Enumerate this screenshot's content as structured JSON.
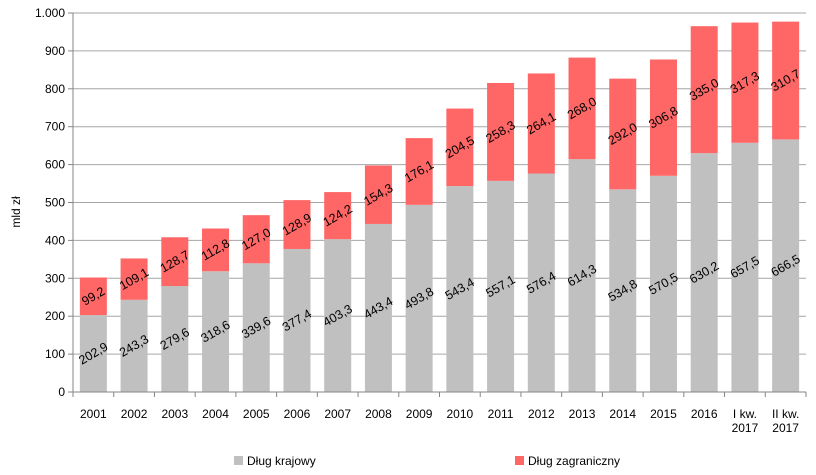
{
  "chart_data": {
    "type": "bar",
    "stacked": true,
    "title": "",
    "xlabel": "",
    "ylabel": "mld zł",
    "ylim": [
      0,
      1000
    ],
    "yticks": [
      0,
      100,
      200,
      300,
      400,
      500,
      600,
      700,
      800,
      900,
      1000
    ],
    "ytick_labels": [
      "0",
      "100",
      "200",
      "300",
      "400",
      "500",
      "600",
      "700",
      "800",
      "900",
      "1.000"
    ],
    "grid": true,
    "legend_position": "bottom",
    "categories": [
      [
        "2001"
      ],
      [
        "2002"
      ],
      [
        "2003"
      ],
      [
        "2004"
      ],
      [
        "2005"
      ],
      [
        "2006"
      ],
      [
        "2007"
      ],
      [
        "2008"
      ],
      [
        "2009"
      ],
      [
        "2010"
      ],
      [
        "2011"
      ],
      [
        "2012"
      ],
      [
        "2013"
      ],
      [
        "2014"
      ],
      [
        "2015"
      ],
      [
        "2016"
      ],
      [
        "I kw.",
        "2017"
      ],
      [
        "II kw.",
        "2017"
      ]
    ],
    "series": [
      {
        "name": "Dług krajowy",
        "color": "#c0c0c0",
        "values": [
          202.9,
          243.3,
          279.6,
          318.6,
          339.6,
          377.4,
          403.3,
          443.4,
          493.8,
          543.4,
          557.1,
          576.4,
          614.3,
          534.8,
          570.5,
          630.2,
          657.5,
          666.5
        ],
        "labels": [
          "202,9",
          "243,3",
          "279,6",
          "318,6",
          "339,6",
          "377,4",
          "403,3",
          "443,4",
          "493,8",
          "543,4",
          "557,1",
          "576,4",
          "614,3",
          "534,8",
          "570,5",
          "630,2",
          "657,5",
          "666,5"
        ]
      },
      {
        "name": "Dług zagraniczny",
        "color": "#ff6666",
        "values": [
          99.2,
          109.1,
          128.7,
          112.8,
          127.0,
          128.9,
          124.2,
          154.3,
          176.1,
          204.5,
          258.3,
          264.1,
          268.0,
          292.0,
          306.8,
          335.0,
          317.3,
          310.7
        ],
        "labels": [
          "99,2",
          "109,1",
          "128,7",
          "112,8",
          "127,0",
          "128,9",
          "124,2",
          "154,3",
          "176,1",
          "204,5",
          "258,3",
          "264,1",
          "268,0",
          "292,0",
          "306,8",
          "335,0",
          "317,3",
          "310,7"
        ]
      }
    ]
  }
}
